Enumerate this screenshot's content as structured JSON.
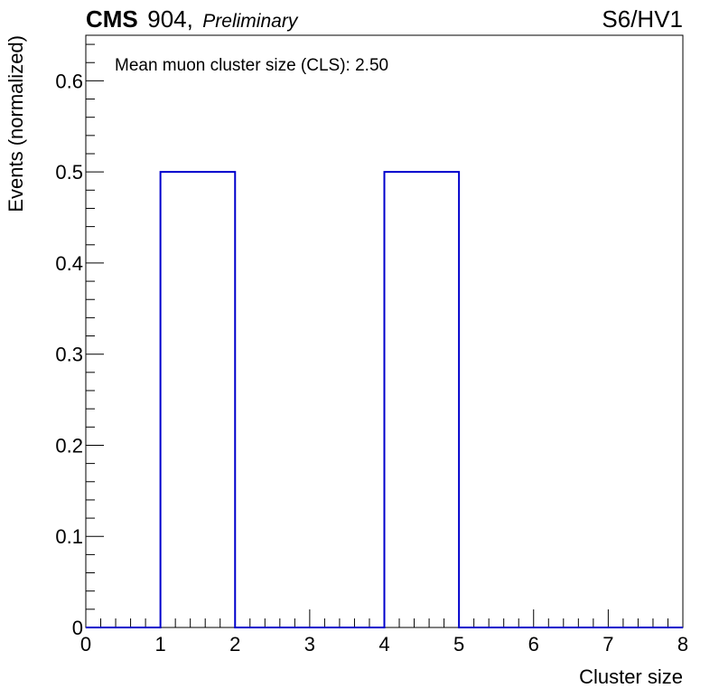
{
  "header": {
    "experiment": "CMS",
    "site": "904,",
    "status": "Preliminary",
    "label_right": "S6/HV1"
  },
  "chart_data": {
    "type": "histogram",
    "title": "",
    "xlabel": "Cluster size",
    "ylabel": "Events (normalized)",
    "xlim": [
      0,
      8
    ],
    "ylim": [
      0,
      0.65
    ],
    "xticks": [
      0,
      1,
      2,
      3,
      4,
      5,
      6,
      7,
      8
    ],
    "yticks": [
      0,
      0.1,
      0.2,
      0.3,
      0.4,
      0.5,
      0.6
    ],
    "ytick_labels": [
      "0",
      "0.1",
      "0.2",
      "0.3",
      "0.4",
      "0.5",
      "0.6"
    ],
    "bin_edges": [
      0,
      1,
      2,
      3,
      4,
      5,
      6,
      7,
      8
    ],
    "values": [
      0,
      0.5,
      0,
      0,
      0.5,
      0,
      0,
      0
    ],
    "line_color": "#0000cc",
    "grid": false,
    "annotation": "Mean muon cluster size (CLS): 2.50"
  }
}
